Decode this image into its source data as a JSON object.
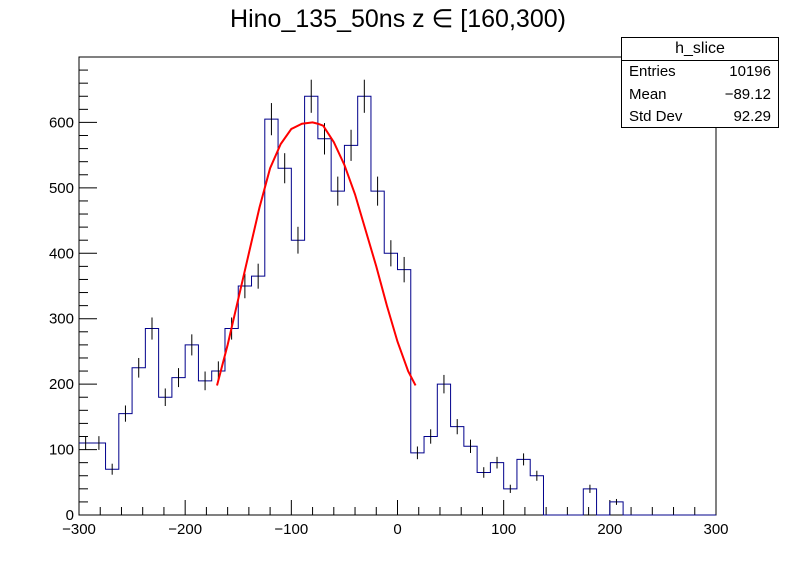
{
  "chart_data": {
    "type": "bar",
    "title": "Hino_135_50ns z  ∈ [160,300)",
    "xlim": [
      -300,
      300
    ],
    "ylim": [
      0,
      700
    ],
    "bin_width": 12.5,
    "x_ticks": [
      -300,
      -200,
      -100,
      0,
      100,
      200,
      300
    ],
    "x_tick_labels": [
      "−300",
      "−200",
      "−100",
      "0",
      "100",
      "200",
      "300"
    ],
    "y_ticks": [
      0,
      100,
      200,
      300,
      400,
      500,
      600
    ],
    "y_tick_labels": [
      "0",
      "100",
      "200",
      "300",
      "400",
      "500",
      "600"
    ],
    "grid": false,
    "bin_centers": [
      -293.75,
      -281.25,
      -268.75,
      -256.25,
      -243.75,
      -231.25,
      -218.75,
      -206.25,
      -193.75,
      -181.25,
      -168.75,
      -156.25,
      -143.75,
      -131.25,
      -118.75,
      -106.25,
      -93.75,
      -81.25,
      -68.75,
      -56.25,
      -43.75,
      -31.25,
      -18.75,
      -6.25,
      6.25,
      18.75,
      31.25,
      43.75,
      56.25,
      68.75,
      81.25,
      93.75,
      106.25,
      118.75,
      131.25,
      143.75,
      156.25,
      168.75,
      181.25,
      193.75,
      206.25,
      218.75,
      231.25,
      243.75,
      256.25,
      268.75,
      281.25,
      293.75
    ],
    "series": [
      {
        "name": "h_slice",
        "color": "#00008b",
        "values": [
          110,
          110,
          70,
          155,
          225,
          285,
          180,
          210,
          260,
          205,
          220,
          285,
          350,
          365,
          605,
          530,
          420,
          640,
          575,
          495,
          565,
          640,
          495,
          400,
          375,
          95,
          120,
          200,
          135,
          105,
          65,
          80,
          40,
          85,
          60,
          0,
          0,
          0,
          40,
          0,
          20,
          0,
          0,
          0,
          0,
          0,
          0,
          0
        ],
        "errors": [
          10.5,
          10.5,
          8.4,
          12.4,
          15,
          16.9,
          13.4,
          14.5,
          16.1,
          14.3,
          14.8,
          16.9,
          18.7,
          19.1,
          24.6,
          23,
          20.5,
          25.3,
          24,
          22.2,
          23.8,
          25.3,
          22.2,
          20,
          19.4,
          9.7,
          11,
          14.1,
          11.6,
          10.2,
          8.1,
          8.9,
          6.3,
          9.2,
          7.7,
          0,
          0,
          0,
          6.3,
          0,
          4.5,
          0,
          0,
          0,
          0,
          0,
          0,
          0
        ]
      }
    ],
    "fit": {
      "color": "#ff0000",
      "x_range": [
        -170,
        17
      ],
      "points": [
        [
          -170,
          198
        ],
        [
          -160,
          260
        ],
        [
          -150,
          330
        ],
        [
          -140,
          400
        ],
        [
          -130,
          470
        ],
        [
          -120,
          530
        ],
        [
          -110,
          567
        ],
        [
          -100,
          590
        ],
        [
          -90,
          598
        ],
        [
          -80,
          600
        ],
        [
          -75,
          598
        ],
        [
          -70,
          595
        ],
        [
          -60,
          570
        ],
        [
          -50,
          535
        ],
        [
          -40,
          490
        ],
        [
          -30,
          435
        ],
        [
          -20,
          380
        ],
        [
          -10,
          320
        ],
        [
          0,
          265
        ],
        [
          10,
          220
        ],
        [
          17,
          198
        ]
      ]
    },
    "stats_box": {
      "title": "h_slice",
      "entries_label": "Entries",
      "entries_value": "10196",
      "mean_label": "Mean",
      "mean_value": "−89.12",
      "std_label": "Std Dev",
      "std_value": "92.29"
    }
  }
}
